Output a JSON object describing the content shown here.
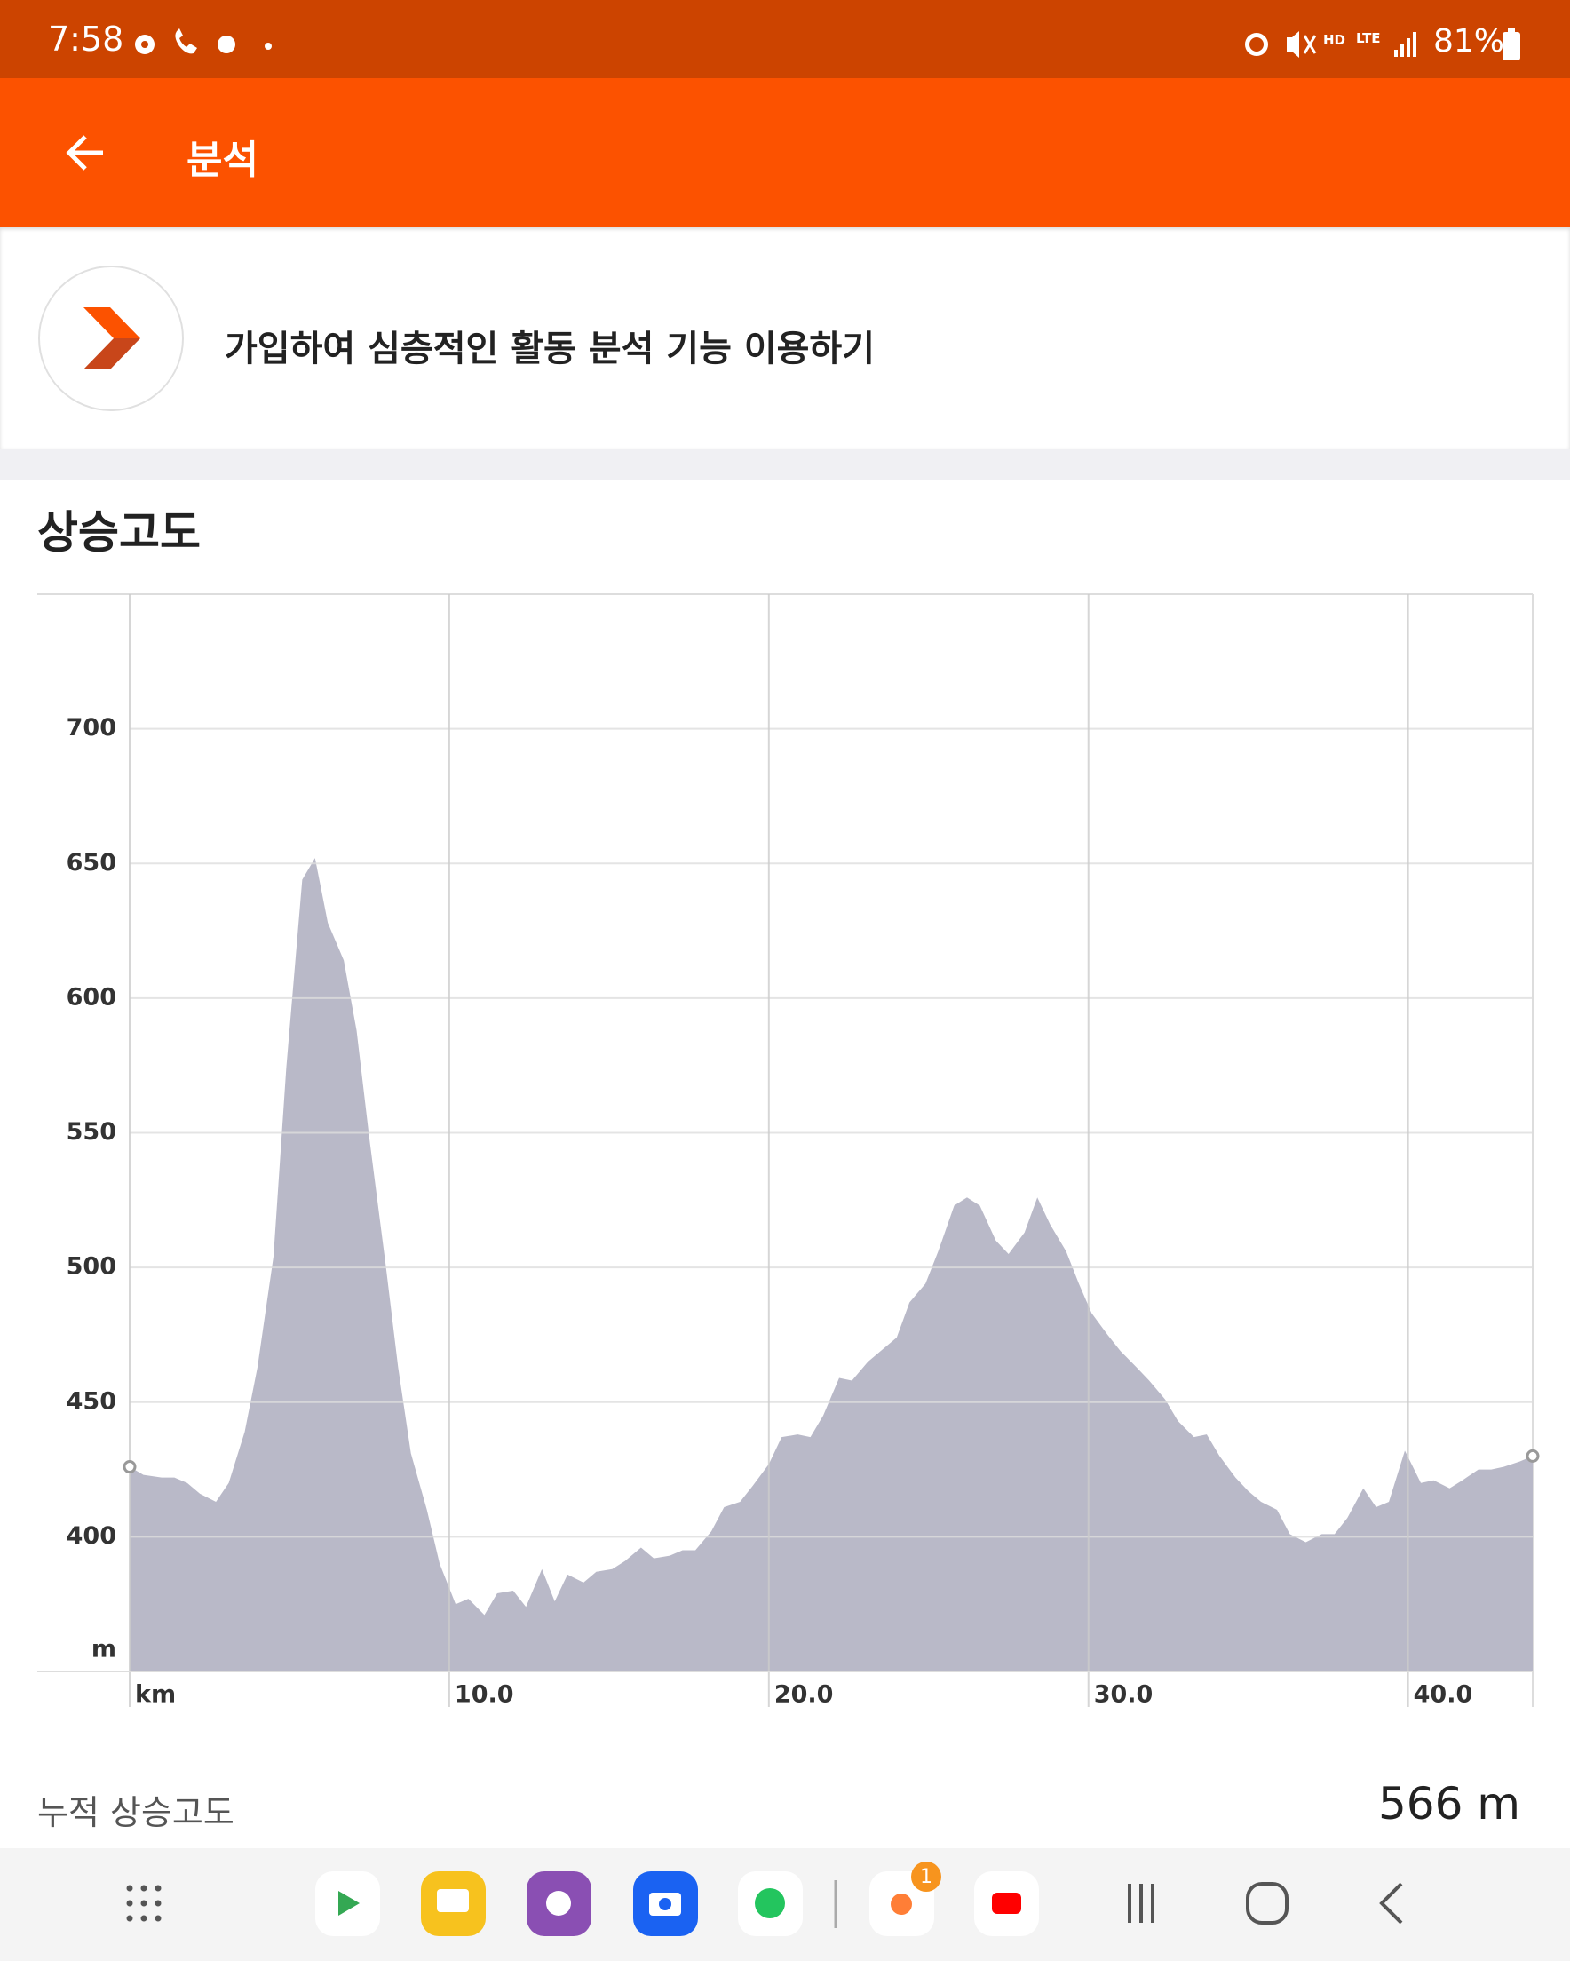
{
  "status_bar": {
    "time": "7:58",
    "battery": "81%"
  },
  "app_bar": {
    "title": "분석"
  },
  "promo": {
    "text": "가입하여 심층적인 활동 분석 기능 이용하기"
  },
  "chart_data": {
    "type": "area",
    "title": "상승고도",
    "color": "#b9b9c8",
    "grid": true,
    "x": [
      0,
      0.43,
      1.0,
      1.4,
      1.8,
      2.2,
      2.7,
      3.1,
      3.6,
      4.0,
      4.5,
      4.9,
      5.4,
      5.8,
      6.2,
      6.7,
      7.1,
      7.5,
      8.0,
      8.4,
      8.8,
      9.3,
      9.7,
      10.2,
      10.6,
      11.1,
      11.5,
      12.0,
      12.4,
      12.9,
      13.3,
      13.7,
      14.2,
      14.6,
      15.1,
      15.5,
      16.0,
      16.4,
      16.9,
      17.3,
      17.7,
      18.2,
      18.6,
      19.1,
      19.5,
      20.0,
      20.4,
      20.9,
      21.3,
      21.7,
      22.2,
      22.6,
      23.1,
      23.5,
      24.0,
      24.4,
      24.9,
      25.3,
      25.8,
      26.2,
      26.6,
      27.1,
      27.5,
      28.0,
      28.4,
      28.8,
      29.3,
      29.7,
      30.1,
      30.6,
      31.0,
      31.5,
      31.9,
      32.4,
      32.8,
      33.3,
      33.7,
      34.1,
      34.6,
      35.0,
      35.4,
      35.9,
      36.3,
      36.8,
      37.3,
      37.7,
      38.1,
      38.6,
      39.0,
      39.4,
      39.9,
      40.4,
      40.8,
      41.3,
      41.7,
      42.2,
      42.6,
      43.0,
      43.5,
      43.9
    ],
    "values": [
      426,
      423,
      422,
      422,
      420,
      416,
      413,
      420,
      439,
      463,
      504,
      574,
      644,
      652,
      628,
      614,
      588,
      548,
      502,
      463,
      431,
      410,
      390,
      375,
      377,
      371,
      379,
      380,
      374,
      388,
      376,
      386,
      383,
      387,
      388,
      391,
      396,
      392,
      393,
      395,
      395,
      402,
      411,
      413,
      419,
      427,
      437,
      438,
      437,
      445,
      459,
      458,
      465,
      469,
      474,
      487,
      494,
      506,
      523,
      526,
      523,
      510,
      505,
      513,
      526,
      516,
      506,
      494,
      483,
      475,
      469,
      463,
      458,
      451,
      443,
      437,
      438,
      430,
      422,
      417,
      413,
      410,
      401,
      398,
      401,
      401,
      407,
      418,
      411,
      413,
      432,
      420,
      421,
      418,
      421,
      425,
      425,
      426,
      428,
      430
    ],
    "xlim": [
      0,
      43.9
    ],
    "ylim": [
      350,
      750
    ],
    "xticks": [
      {
        "value": 0,
        "label": "km"
      },
      {
        "value": 10,
        "label": "10.0"
      },
      {
        "value": 20,
        "label": "20.0"
      },
      {
        "value": 30,
        "label": "30.0"
      },
      {
        "value": 40,
        "label": "40.0"
      }
    ],
    "yticks": [
      {
        "value": 350,
        "label": "m"
      },
      400,
      450,
      500,
      550,
      600,
      650,
      700
    ]
  },
  "stats": {
    "label": "누적 상승고도",
    "value": "566 m"
  },
  "dock": {
    "badge": "1"
  }
}
